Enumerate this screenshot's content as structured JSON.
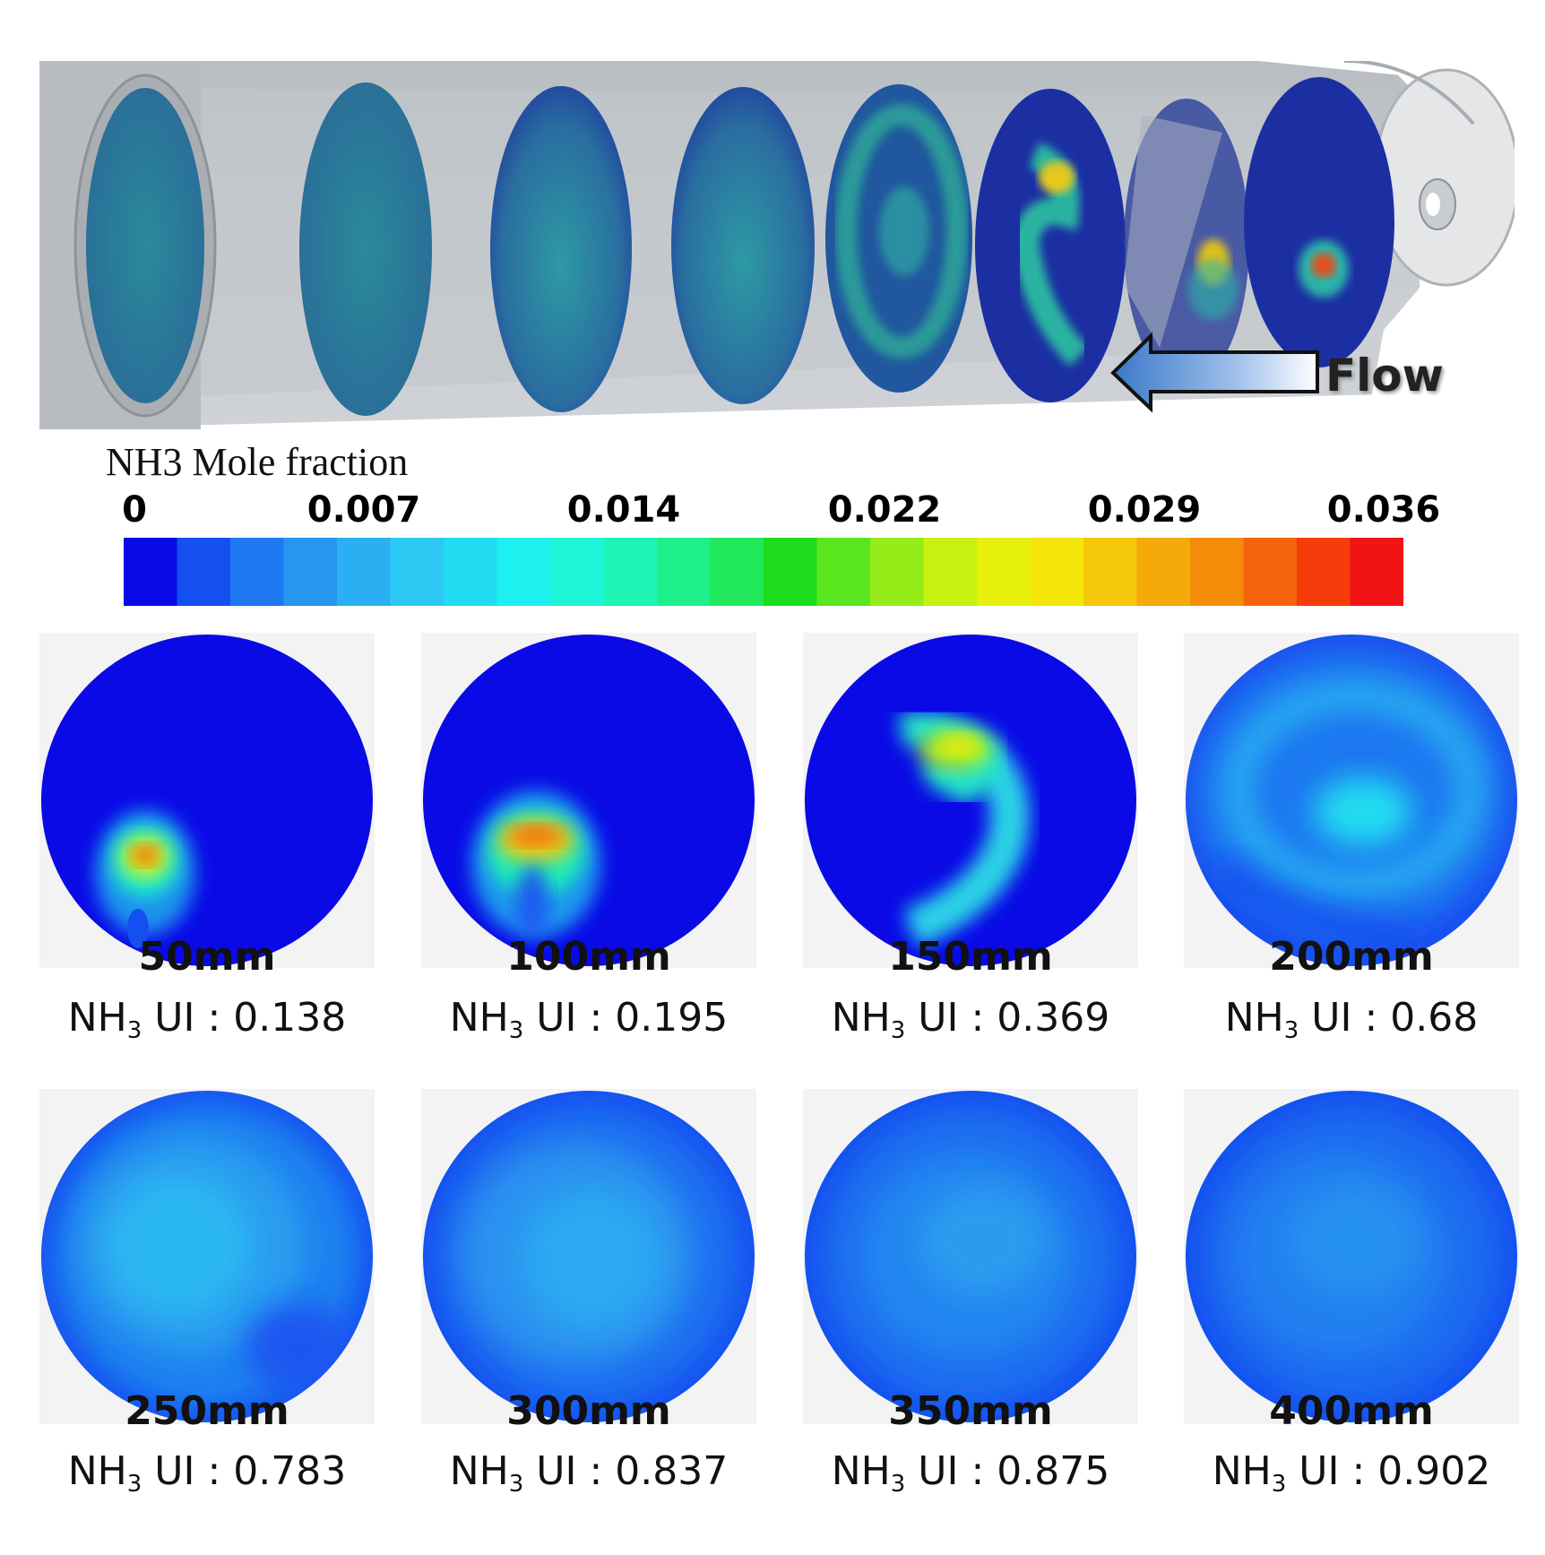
{
  "flow_label": "Flow",
  "colorbar": {
    "title": "NH3 Mole fraction",
    "ticks": [
      "0",
      "0.007",
      "0.014",
      "0.022",
      "0.029",
      "0.036"
    ],
    "colors": [
      "#0a0ae6",
      "#1450f0",
      "#1e78f0",
      "#2896f0",
      "#2ab0f2",
      "#2cc8f4",
      "#22dcf4",
      "#1ef0f0",
      "#1cf5d8",
      "#1ef5b4",
      "#1ef08c",
      "#20e85a",
      "#1edc1e",
      "#5ae61e",
      "#96ec18",
      "#c8f010",
      "#e6f00a",
      "#f5e60a",
      "#f5c80a",
      "#f5aa0a",
      "#f58c0a",
      "#f5640a",
      "#f53c0a",
      "#f01414"
    ]
  },
  "sections": [
    {
      "position": "50mm",
      "ui_prefix": "NH",
      "ui_sub": "3",
      "ui_suffix": " UI : 0.138"
    },
    {
      "position": "100mm",
      "ui_prefix": "NH",
      "ui_sub": "3",
      "ui_suffix": " UI : 0.195"
    },
    {
      "position": "150mm",
      "ui_prefix": "NH",
      "ui_sub": "3",
      "ui_suffix": " UI : 0.369"
    },
    {
      "position": "200mm",
      "ui_prefix": "NH",
      "ui_sub": "3",
      "ui_suffix": " UI : 0.68"
    },
    {
      "position": "250mm",
      "ui_prefix": "NH",
      "ui_sub": "3",
      "ui_suffix": " UI : 0.783"
    },
    {
      "position": "300mm",
      "ui_prefix": "NH",
      "ui_sub": "3",
      "ui_suffix": " UI : 0.837"
    },
    {
      "position": "350mm",
      "ui_prefix": "NH",
      "ui_sub": "3",
      "ui_suffix": " UI : 0.875"
    },
    {
      "position": "400mm",
      "ui_prefix": "NH",
      "ui_sub": "3",
      "ui_suffix": " UI : 0.902"
    }
  ]
}
